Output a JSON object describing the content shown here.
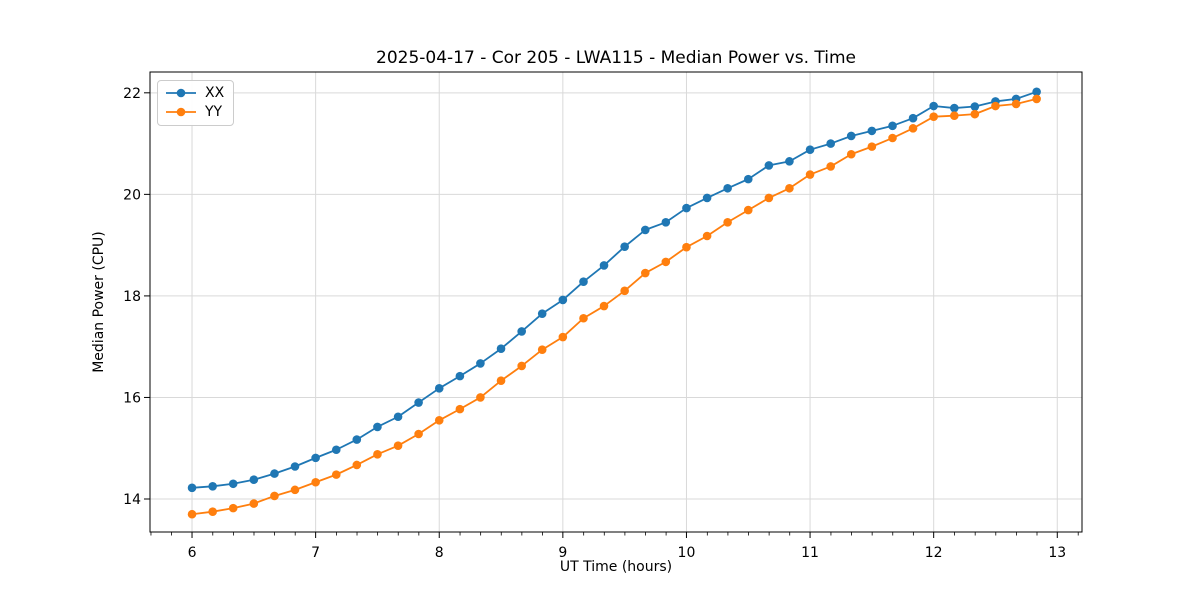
{
  "chart_data": {
    "type": "line",
    "title": "2025-04-17 - Cor 205 - LWA115 - Median Power vs. Time",
    "xlabel": "UT Time (hours)",
    "ylabel": "Median Power (CPU)",
    "x": [
      6.0,
      6.167,
      6.333,
      6.5,
      6.667,
      6.833,
      7.0,
      7.167,
      7.333,
      7.5,
      7.667,
      7.833,
      8.0,
      8.167,
      8.333,
      8.5,
      8.667,
      8.833,
      9.0,
      9.167,
      9.333,
      9.5,
      9.667,
      9.833,
      10.0,
      10.167,
      10.333,
      10.5,
      10.667,
      10.833,
      11.0,
      11.167,
      11.333,
      11.5,
      11.667,
      11.833,
      12.0,
      12.167,
      12.333,
      12.5,
      12.667,
      12.833
    ],
    "series": [
      {
        "name": "XX",
        "color": "#1f77b4",
        "marker": "circle",
        "values": [
          14.22,
          14.25,
          14.3,
          14.38,
          14.5,
          14.64,
          14.81,
          14.97,
          15.17,
          15.42,
          15.62,
          15.9,
          16.18,
          16.42,
          16.67,
          16.96,
          17.3,
          17.65,
          17.92,
          18.28,
          18.6,
          18.97,
          19.3,
          19.45,
          19.73,
          19.93,
          20.12,
          20.3,
          20.57,
          20.65,
          20.88,
          21.0,
          21.15,
          21.25,
          21.35,
          21.5,
          21.74,
          21.7,
          21.73,
          21.83,
          21.88,
          22.02
        ]
      },
      {
        "name": "YY",
        "color": "#ff7f0e",
        "marker": "circle",
        "values": [
          13.7,
          13.75,
          13.82,
          13.91,
          14.06,
          14.18,
          14.33,
          14.48,
          14.67,
          14.88,
          15.05,
          15.28,
          15.55,
          15.77,
          16.0,
          16.33,
          16.62,
          16.94,
          17.19,
          17.56,
          17.8,
          18.1,
          18.45,
          18.67,
          18.96,
          19.18,
          19.45,
          19.69,
          19.93,
          20.12,
          20.39,
          20.55,
          20.79,
          20.94,
          21.11,
          21.3,
          21.53,
          21.55,
          21.58,
          21.74,
          21.78,
          21.88
        ]
      }
    ],
    "xticks": [
      6,
      7,
      8,
      9,
      10,
      11,
      12,
      13
    ],
    "yticks": [
      14,
      16,
      18,
      20,
      22
    ],
    "xlim": [
      5.66,
      13.2
    ],
    "ylim": [
      13.35,
      22.41
    ],
    "x_minor_tick_interval": 0.1667,
    "grid": true,
    "legend_position": "upper left"
  },
  "legend": {
    "items": [
      {
        "label": "XX",
        "color": "#1f77b4"
      },
      {
        "label": "YY",
        "color": "#ff7f0e"
      }
    ]
  },
  "style": {
    "grid_color": "#d9d9d9",
    "spine_color": "#000000",
    "tick_color": "#000000",
    "text_color": "#000000",
    "line_width": 1.8,
    "marker_radius": 4.3
  }
}
